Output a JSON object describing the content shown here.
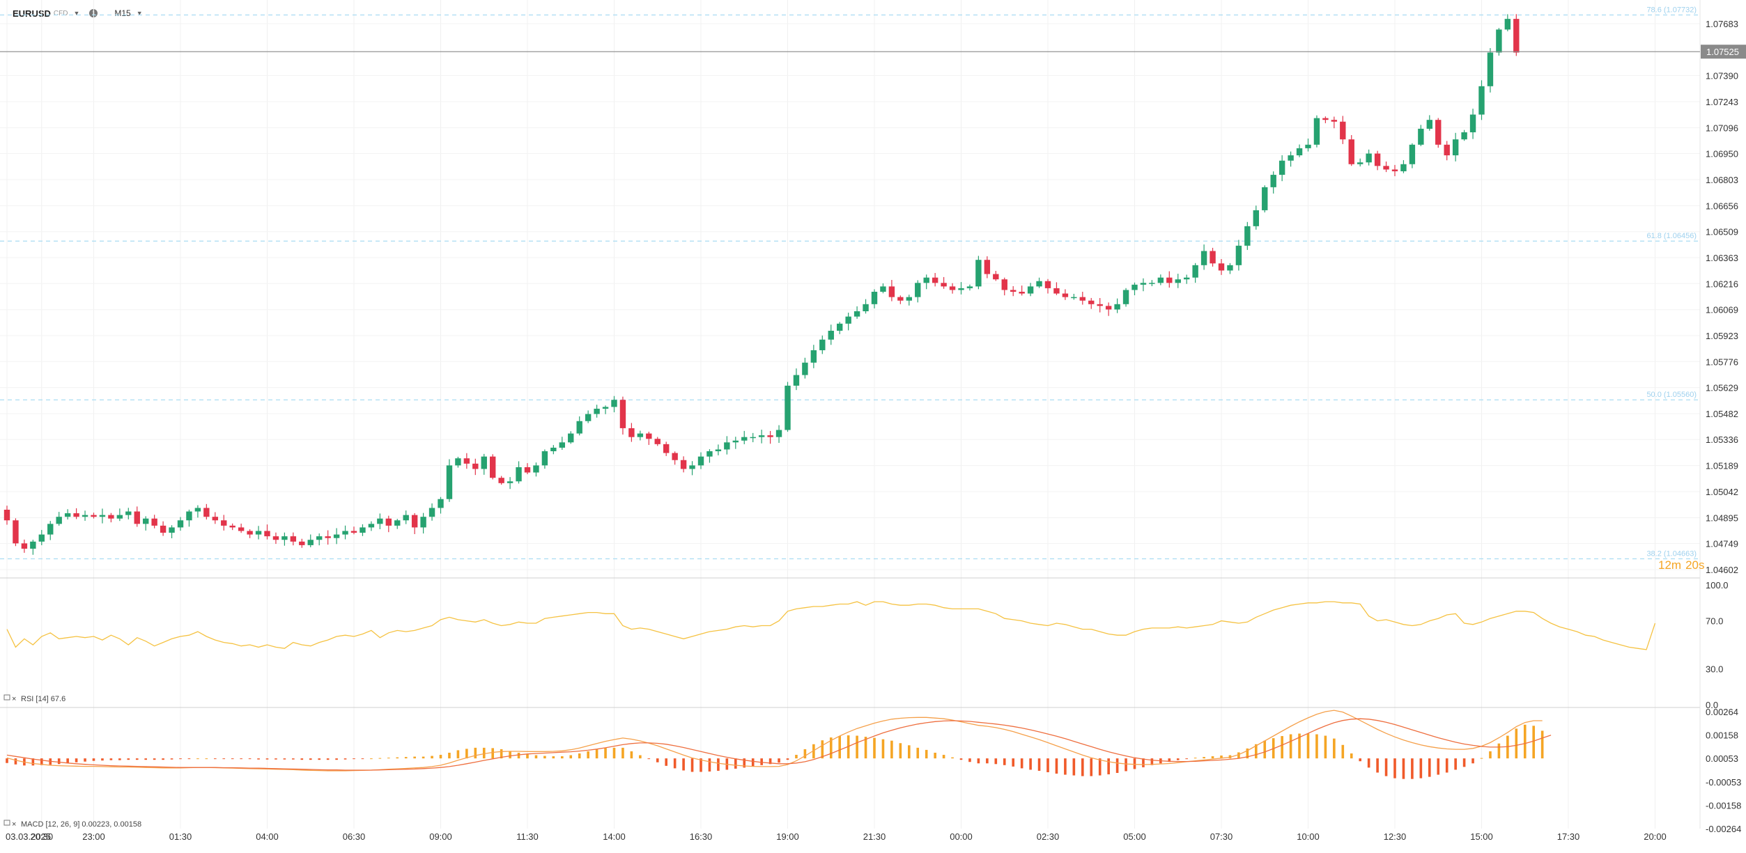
{
  "toolbar": {
    "symbol": "EURUSD",
    "symbol_suffix": "CFD",
    "timeframe": "M15"
  },
  "colors": {
    "up": "#26a270",
    "down": "#e2344a",
    "rsi": "#f5c242",
    "macd_line": "#f5a04a",
    "signal_line": "#ee6e3e",
    "hist_pos": "#f5a524",
    "hist_neg": "#f05a2a",
    "fib": "#a9dcf2",
    "price_line": "#888888"
  },
  "chart_data": [
    {
      "type": "candlestick",
      "panel": "price",
      "y_ticks": [
        "1.07683",
        "1.07390",
        "1.07243",
        "1.07096",
        "1.06950",
        "1.06803",
        "1.06656",
        "1.06509",
        "1.06363",
        "1.06216",
        "1.06069",
        "1.05923",
        "1.05776",
        "1.05629",
        "1.05482",
        "1.05336",
        "1.05189",
        "1.05042",
        "1.04895",
        "1.04749",
        "1.04602"
      ],
      "ylim": [
        1.04602,
        1.07683
      ],
      "current_price": "1.07525",
      "countdown": {
        "min": "12m",
        "sec": "20s"
      },
      "fib_levels": [
        {
          "label": "78.6 (1.07732)",
          "value": 1.07732
        },
        {
          "label": "61.8 (1.06456)",
          "value": 1.06456
        },
        {
          "label": "50.0 (1.05560)",
          "value": 1.0556
        },
        {
          "label": "38.2 (1.04663)",
          "value": 1.04663
        }
      ],
      "x_ticks": [
        {
          "label": "03.03.2025",
          "i": 0
        },
        {
          "label": "20:30",
          "i": 4
        },
        {
          "label": "23:00",
          "i": 10
        },
        {
          "label": "01:30",
          "i": 20
        },
        {
          "label": "04:00",
          "i": 30
        },
        {
          "label": "06:30",
          "i": 40
        },
        {
          "label": "09:00",
          "i": 50
        },
        {
          "label": "11:30",
          "i": 60
        },
        {
          "label": "14:00",
          "i": 70
        },
        {
          "label": "16:30",
          "i": 80
        },
        {
          "label": "19:00",
          "i": 90
        },
        {
          "label": "21:30",
          "i": 100
        },
        {
          "label": "00:00",
          "i": 110
        },
        {
          "label": "02:30",
          "i": 120
        },
        {
          "label": "05:00",
          "i": 130
        },
        {
          "label": "07:30",
          "i": 140
        },
        {
          "label": "10:00",
          "i": 150
        },
        {
          "label": "12:30",
          "i": 160
        },
        {
          "label": "15:00",
          "i": 170
        },
        {
          "label": "17:30",
          "i": 180
        },
        {
          "label": "20:00",
          "i": 190
        }
      ],
      "closes": [
        1.0488,
        1.0475,
        1.0472,
        1.0476,
        1.048,
        1.0486,
        1.049,
        1.0492,
        1.049,
        1.0491,
        1.049,
        1.0491,
        1.0489,
        1.0491,
        1.0493,
        1.0486,
        1.0489,
        1.0485,
        1.0481,
        1.0484,
        1.0488,
        1.0493,
        1.0495,
        1.049,
        1.0488,
        1.0485,
        1.0484,
        1.0482,
        1.048,
        1.0482,
        1.0479,
        1.0477,
        1.0479,
        1.0476,
        1.0474,
        1.0477,
        1.0479,
        1.0478,
        1.048,
        1.0482,
        1.0481,
        1.0484,
        1.0486,
        1.0489,
        1.0485,
        1.0488,
        1.0491,
        1.0484,
        1.049,
        1.0495,
        1.05,
        1.0519,
        1.0523,
        1.052,
        1.0517,
        1.0524,
        1.0512,
        1.0509,
        1.051,
        1.0518,
        1.0515,
        1.0519,
        1.0527,
        1.0529,
        1.0532,
        1.0537,
        1.0544,
        1.0548,
        1.0551,
        1.0552,
        1.0556,
        1.054,
        1.0535,
        1.0537,
        1.0534,
        1.0531,
        1.0526,
        1.0522,
        1.0517,
        1.0519,
        1.0524,
        1.0527,
        1.0528,
        1.0532,
        1.0533,
        1.0535,
        1.0535,
        1.0536,
        1.0535,
        1.0539,
        1.0564,
        1.057,
        1.0577,
        1.0584,
        1.059,
        1.0595,
        1.0599,
        1.0603,
        1.0606,
        1.061,
        1.0617,
        1.062,
        1.0614,
        1.0612,
        1.0614,
        1.0622,
        1.0625,
        1.0622,
        1.062,
        1.0618,
        1.0619,
        1.062,
        1.0635,
        1.0627,
        1.0624,
        1.0618,
        1.0617,
        1.0616,
        1.062,
        1.0623,
        1.0619,
        1.0616,
        1.0614,
        1.0614,
        1.0612,
        1.061,
        1.0609,
        1.0607,
        1.061,
        1.0618,
        1.0621,
        1.0622,
        1.0622,
        1.0625,
        1.0622,
        1.0624,
        1.0625,
        1.0632,
        1.064,
        1.0633,
        1.0629,
        1.0632,
        1.0643,
        1.0654,
        1.0663,
        1.0676,
        1.0683,
        1.0691,
        1.0694,
        1.0698,
        1.07,
        1.0715,
        1.0714,
        1.0713,
        1.0703,
        1.0689,
        1.069,
        1.0695,
        1.0688,
        1.0686,
        1.0685,
        1.0689,
        1.07,
        1.0709,
        1.0714,
        1.07,
        1.0694,
        1.0703,
        1.0707,
        1.0717,
        1.0733,
        1.0752,
        1.0765,
        1.0771,
        1.0752
      ]
    },
    {
      "type": "line",
      "panel": "rsi",
      "label": "RSI [14] 67.6",
      "y_ticks": [
        "100.0",
        "70.0",
        "30.0",
        "0.0"
      ],
      "ylim": [
        0,
        100
      ],
      "values": [
        63,
        48,
        55,
        50,
        57,
        60,
        55,
        56,
        57,
        56,
        57,
        54,
        58,
        55,
        50,
        56,
        53,
        49,
        52,
        55,
        57,
        58,
        61,
        57,
        54,
        52,
        51,
        49,
        50,
        48,
        50,
        48,
        47,
        52,
        50,
        49,
        52,
        54,
        57,
        58,
        57,
        59,
        62,
        56,
        60,
        62,
        61,
        62,
        64,
        66,
        71,
        73,
        71,
        70,
        69,
        71,
        68,
        66,
        67,
        69,
        68,
        68,
        72,
        73,
        74,
        75,
        76,
        77,
        77,
        76,
        76,
        66,
        63,
        64,
        63,
        61,
        59,
        57,
        55,
        57,
        59,
        61,
        62,
        63,
        65,
        66,
        65,
        66,
        66,
        70,
        78,
        80,
        81,
        82,
        82,
        83,
        84,
        84,
        86,
        83,
        86,
        86,
        84,
        83,
        83,
        84,
        84,
        83,
        81,
        80,
        80,
        80,
        80,
        78,
        76,
        72,
        71,
        70,
        68,
        67,
        66,
        68,
        67,
        65,
        63,
        63,
        61,
        59,
        58,
        58,
        61,
        63,
        64,
        64,
        64,
        65,
        64,
        65,
        66,
        67,
        70,
        69,
        68,
        69,
        73,
        76,
        79,
        81,
        83,
        84,
        85,
        85,
        86,
        86,
        85,
        85,
        84,
        74,
        70,
        71,
        69,
        67,
        66,
        67,
        70,
        72,
        75,
        76,
        68,
        67,
        69,
        72,
        74,
        76,
        78,
        78,
        77,
        72,
        68,
        65,
        63,
        61,
        58,
        57,
        54,
        52,
        50,
        48,
        47,
        46,
        68
      ]
    },
    {
      "type": "line",
      "panel": "macd",
      "label": "MACD [12, 26, 9] 0.00223, 0.00158",
      "y_ticks": [
        "0.00264",
        "0.00158",
        "0.00053",
        "-0.00053",
        "-0.00158",
        "-0.00264"
      ],
      "ylim": [
        -0.00264,
        0.00264
      ],
      "series": [
        {
          "name": "MACD",
          "values": [
            0.00055,
            0.00045,
            0.00036,
            0.0003,
            0.00026,
            0.00022,
            0.0002,
            0.00019,
            0.00018,
            0.00017,
            0.00017,
            0.00016,
            0.00015,
            0.00014,
            0.00014,
            0.00013,
            0.00012,
            0.00011,
            0.0001,
            0.0001,
            0.0001,
            0.00011,
            0.00012,
            0.00012,
            0.00011,
            0.0001,
            9e-05,
            8e-05,
            7e-05,
            6e-05,
            5e-05,
            4e-05,
            3e-05,
            2e-05,
            0.0,
            -1e-05,
            -2e-05,
            -3e-05,
            -3e-05,
            -3e-05,
            -2e-05,
            -1e-05,
            0.0,
            2e-05,
            4e-05,
            6e-05,
            8e-05,
            0.0001,
            0.00012,
            0.00016,
            0.00022,
            0.00032,
            0.00045,
            0.00056,
            0.00066,
            0.00074,
            0.0008,
            0.00084,
            0.00085,
            0.00085,
            0.00084,
            0.00084,
            0.00084,
            0.00085,
            0.00087,
            0.00092,
            0.001,
            0.0011,
            0.0012,
            0.0013,
            0.00138,
            0.00145,
            0.0014,
            0.00132,
            0.00122,
            0.0011,
            0.00096,
            0.00082,
            0.00068,
            0.00055,
            0.00046,
            0.00038,
            0.00031,
            0.00026,
            0.00022,
            0.00019,
            0.00017,
            0.00016,
            0.00016,
            0.00017,
            0.00025,
            0.00042,
            0.00064,
            0.00088,
            0.00112,
            0.00134,
            0.00154,
            0.00172,
            0.00188,
            0.002,
            0.00212,
            0.00222,
            0.0023,
            0.00234,
            0.00237,
            0.00238,
            0.00238,
            0.00235,
            0.00232,
            0.00226,
            0.00218,
            0.0021,
            0.00202,
            0.00198,
            0.00192,
            0.00184,
            0.00174,
            0.00162,
            0.0015,
            0.00138,
            0.00124,
            0.0011,
            0.00096,
            0.00082,
            0.00068,
            0.00056,
            0.00046,
            0.00038,
            0.00032,
            0.00028,
            0.00026,
            0.00025,
            0.00026,
            0.00028,
            0.0003,
            0.00034,
            0.00038,
            0.00042,
            0.00046,
            0.0005,
            0.00054,
            0.00058,
            0.0007,
            0.00088,
            0.0011,
            0.00132,
            0.00154,
            0.00176,
            0.00198,
            0.00218,
            0.00236,
            0.00252,
            0.00264,
            0.0027,
            0.00262,
            0.00244,
            0.00224,
            0.00204,
            0.00184,
            0.00166,
            0.0015,
            0.00136,
            0.00124,
            0.00114,
            0.00106,
            0.001,
            0.00096,
            0.00094,
            0.00094,
            0.00098,
            0.00108,
            0.00124,
            0.00146,
            0.0017,
            0.00196,
            0.00215,
            0.00223,
            0.00223
          ]
        },
        {
          "name": "Signal",
          "values": [
            0.00068,
            0.00062,
            0.00056,
            0.0005,
            0.00045,
            0.0004,
            0.00036,
            0.00032,
            0.00029,
            0.00026,
            0.00024,
            0.00022,
            0.0002,
            0.00019,
            0.00018,
            0.00017,
            0.00016,
            0.00015,
            0.00014,
            0.00013,
            0.00012,
            0.00012,
            0.00012,
            0.00012,
            0.00012,
            0.00011,
            0.00011,
            0.0001,
            9e-05,
            9e-05,
            8e-05,
            7e-05,
            6e-05,
            5e-05,
            4e-05,
            3e-05,
            2e-05,
            1e-05,
            1e-05,
            0.0,
            0.0,
            0.0,
            0.0,
            1e-05,
            2e-05,
            3e-05,
            4e-05,
            5e-05,
            7e-05,
            9e-05,
            0.00012,
            0.00016,
            0.00022,
            0.00029,
            0.00036,
            0.00044,
            0.00051,
            0.00058,
            0.00064,
            0.00069,
            0.00073,
            0.00075,
            0.00077,
            0.00079,
            0.00081,
            0.00083,
            0.00086,
            0.0009,
            0.00095,
            0.00101,
            0.00108,
            0.00115,
            0.0012,
            0.00123,
            0.00123,
            0.00121,
            0.00117,
            0.0011,
            0.00102,
            0.00093,
            0.00084,
            0.00075,
            0.00066,
            0.00058,
            0.00051,
            0.00045,
            0.0004,
            0.00035,
            0.00032,
            0.00029,
            0.00029,
            0.00032,
            0.00038,
            0.00048,
            0.00061,
            0.00075,
            0.00091,
            0.00107,
            0.00124,
            0.00139,
            0.00154,
            0.00168,
            0.0018,
            0.00191,
            0.002,
            0.00208,
            0.00214,
            0.00219,
            0.00222,
            0.00223,
            0.00222,
            0.0022,
            0.00216,
            0.00212,
            0.00208,
            0.00203,
            0.00197,
            0.0019,
            0.00182,
            0.00173,
            0.00163,
            0.00153,
            0.00142,
            0.0013,
            0.00118,
            0.00106,
            0.00094,
            0.00083,
            0.00073,
            0.00064,
            0.00056,
            0.0005,
            0.00045,
            0.00042,
            0.0004,
            0.00039,
            0.00039,
            0.0004,
            0.00042,
            0.00044,
            0.00046,
            0.00049,
            0.00053,
            0.0006,
            0.0007,
            0.00082,
            0.00097,
            0.00113,
            0.0013,
            0.00148,
            0.00166,
            0.00184,
            0.002,
            0.00214,
            0.00224,
            0.0023,
            0.00232,
            0.0023,
            0.00224,
            0.00216,
            0.00206,
            0.00194,
            0.00182,
            0.0017,
            0.00158,
            0.00146,
            0.00136,
            0.00126,
            0.00118,
            0.00112,
            0.00107,
            0.00104,
            0.00104,
            0.00106,
            0.00112,
            0.0012,
            0.00131,
            0.00145,
            0.00158
          ]
        }
      ]
    }
  ]
}
